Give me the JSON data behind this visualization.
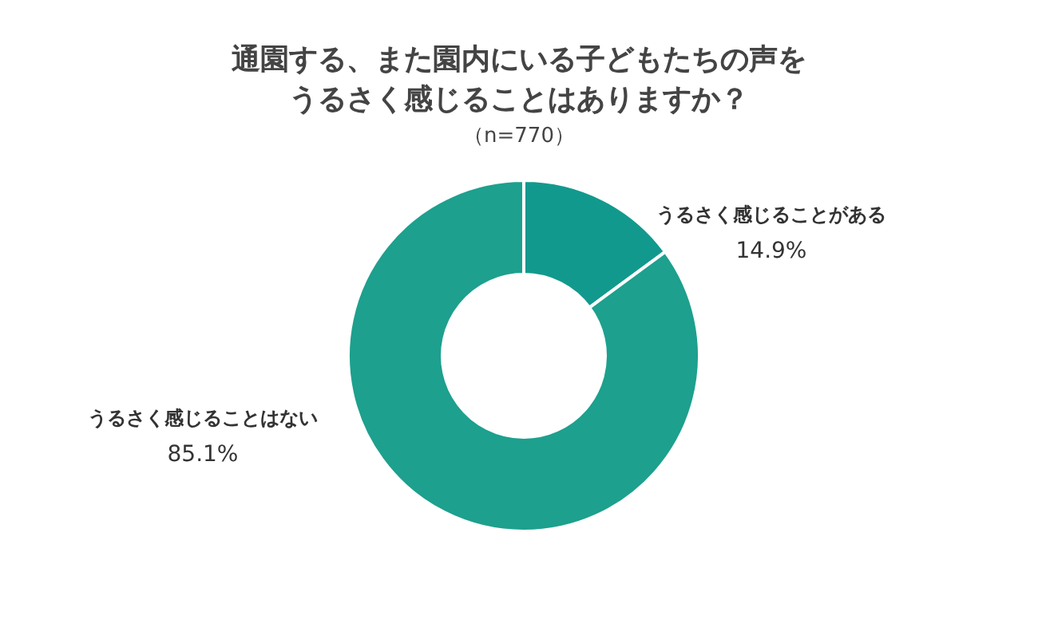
{
  "chart_data": {
    "type": "donut",
    "title": "通園する、また園内にいる子どもたちの声をうるさく感じることはありますか？",
    "subtitle": "（n=770）",
    "categories": [
      "うるさく感じることがある",
      "うるさく感じることはない"
    ],
    "values": [
      14.9,
      85.1
    ],
    "colors": [
      "#12998d",
      "#1da08e"
    ],
    "value_labels": [
      "14.9%",
      "85.1%"
    ]
  }
}
